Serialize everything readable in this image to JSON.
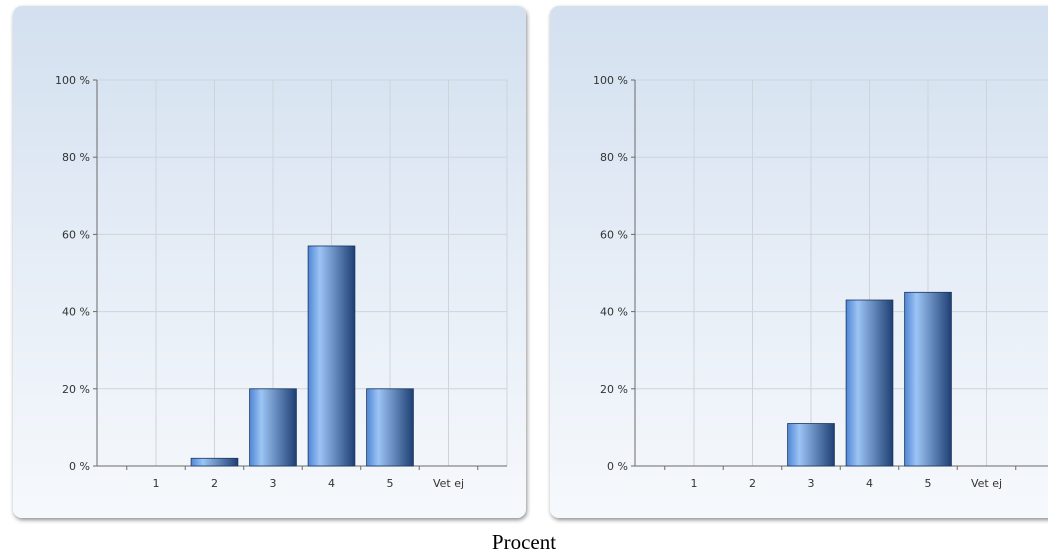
{
  "caption": "Procent",
  "chart_data": [
    {
      "type": "bar",
      "categories": [
        "1",
        "2",
        "3",
        "4",
        "5",
        "Vet ej"
      ],
      "values": [
        0,
        2,
        20,
        57,
        20,
        0
      ],
      "ylim": [
        0,
        100
      ],
      "yticks": [
        0,
        20,
        40,
        60,
        80,
        100
      ],
      "ytick_labels": [
        "0 %",
        "20 %",
        "40 %",
        "60 %",
        "80 %",
        "100 %"
      ],
      "grid": true
    },
    {
      "type": "bar",
      "categories": [
        "1",
        "2",
        "3",
        "4",
        "5",
        "Vet ej"
      ],
      "values": [
        0,
        0,
        11,
        43,
        45,
        0
      ],
      "ylim": [
        0,
        100
      ],
      "yticks": [
        0,
        20,
        40,
        60,
        80,
        100
      ],
      "ytick_labels": [
        "0 %",
        "20 %",
        "40 %",
        "60 %",
        "80 %",
        "100 %"
      ],
      "grid": true
    }
  ],
  "colors": {
    "bar_dark": "#1e3f73",
    "bar_mid": "#4f86d4",
    "bar_light": "#9cc4f5",
    "grid": "#cfd4da",
    "axis": "#6a6a6a",
    "text": "#333333"
  }
}
